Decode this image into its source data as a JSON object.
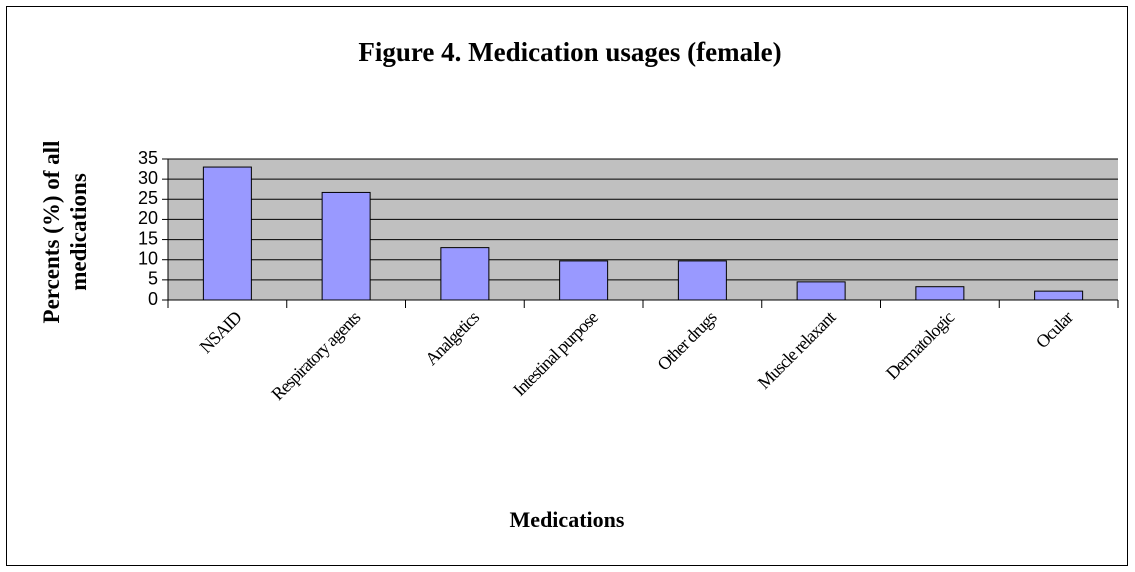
{
  "chart_data": {
    "type": "bar",
    "title": "Figure 4. Medication usages (female)",
    "xlabel": "Medications",
    "ylabel": "Percents (%) of all medications",
    "categories": [
      "NSAID",
      "Respiratory agents",
      "Analgetics",
      "Intestinal purpose",
      "Other drugs",
      "Muscle relaxant",
      "Dermatologic",
      "Ocular"
    ],
    "values": [
      33,
      26.7,
      13,
      9.7,
      9.7,
      4.5,
      3.3,
      2.2
    ],
    "color": "#9999ff",
    "ylim": [
      0,
      35
    ],
    "yticks": [
      0,
      5,
      10,
      15,
      20,
      25,
      30,
      35
    ],
    "grid": true
  }
}
